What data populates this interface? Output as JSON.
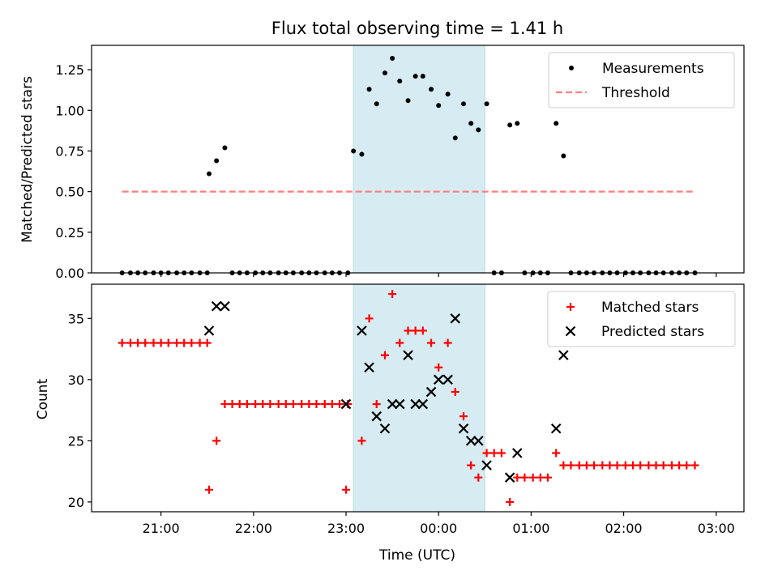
{
  "chart_data": [
    {
      "type": "scatter",
      "title": "Flux total observing time = 1.41 h",
      "xlabel": "",
      "ylabel": "Matched/Predicted stars",
      "ylim": [
        0,
        1.4
      ],
      "yticks": [
        0,
        0.25,
        0.5,
        0.75,
        1.0,
        1.25
      ],
      "ytick_labels": [
        "0.00",
        "0.25",
        "0.50",
        "0.75",
        "1.00",
        "1.25"
      ],
      "x_unit": "hours since 20:00 UTC",
      "xlim": [
        0.25,
        7.3
      ],
      "highlight_span": [
        3.08,
        4.5
      ],
      "legend_position": "top-right",
      "series": [
        {
          "name": "Measurements",
          "marker": "dot",
          "color": "#000000",
          "points": [
            [
              0.58,
              0
            ],
            [
              0.67,
              0
            ],
            [
              0.75,
              0
            ],
            [
              0.83,
              0
            ],
            [
              0.92,
              0
            ],
            [
              1.0,
              0
            ],
            [
              1.08,
              0
            ],
            [
              1.17,
              0
            ],
            [
              1.25,
              0
            ],
            [
              1.33,
              0
            ],
            [
              1.42,
              0
            ],
            [
              1.5,
              0
            ],
            [
              1.52,
              0.61
            ],
            [
              1.6,
              0.69
            ],
            [
              1.69,
              0.77
            ],
            [
              1.77,
              0
            ],
            [
              1.85,
              0
            ],
            [
              1.93,
              0
            ],
            [
              2.02,
              0
            ],
            [
              2.1,
              0
            ],
            [
              2.18,
              0
            ],
            [
              2.27,
              0
            ],
            [
              2.35,
              0
            ],
            [
              2.43,
              0
            ],
            [
              2.52,
              0
            ],
            [
              2.6,
              0
            ],
            [
              2.68,
              0
            ],
            [
              2.77,
              0
            ],
            [
              2.85,
              0
            ],
            [
              2.93,
              0
            ],
            [
              3.02,
              0
            ],
            [
              3.08,
              0.75
            ],
            [
              3.17,
              0.73
            ],
            [
              3.25,
              1.13
            ],
            [
              3.33,
              1.04
            ],
            [
              3.42,
              1.23
            ],
            [
              3.5,
              1.32
            ],
            [
              3.58,
              1.18
            ],
            [
              3.67,
              1.06
            ],
            [
              3.75,
              1.21
            ],
            [
              3.83,
              1.21
            ],
            [
              3.92,
              1.13
            ],
            [
              4.0,
              1.03
            ],
            [
              4.1,
              1.1
            ],
            [
              4.18,
              0.83
            ],
            [
              4.27,
              1.04
            ],
            [
              4.35,
              0.92
            ],
            [
              4.43,
              0.88
            ],
            [
              4.52,
              1.04
            ],
            [
              4.6,
              0
            ],
            [
              4.68,
              0
            ],
            [
              4.77,
              0.91
            ],
            [
              4.85,
              0.92
            ],
            [
              4.93,
              0
            ],
            [
              5.02,
              0
            ],
            [
              5.1,
              0
            ],
            [
              5.18,
              0
            ],
            [
              5.27,
              0.92
            ],
            [
              5.35,
              0.72
            ],
            [
              5.43,
              0
            ],
            [
              5.52,
              0
            ],
            [
              5.6,
              0
            ],
            [
              5.68,
              0
            ],
            [
              5.77,
              0
            ],
            [
              5.85,
              0
            ],
            [
              5.93,
              0
            ],
            [
              6.02,
              0
            ],
            [
              6.1,
              0
            ],
            [
              6.18,
              0
            ],
            [
              6.27,
              0
            ],
            [
              6.35,
              0
            ],
            [
              6.43,
              0
            ],
            [
              6.52,
              0
            ],
            [
              6.6,
              0
            ],
            [
              6.68,
              0
            ],
            [
              6.77,
              0
            ]
          ]
        },
        {
          "name": "Threshold",
          "marker": "dashed-line",
          "color": "#ff7f7f",
          "points": [
            [
              0.58,
              0.5
            ],
            [
              6.77,
              0.5
            ]
          ]
        }
      ]
    },
    {
      "type": "scatter",
      "title": "",
      "xlabel": "Time (UTC)",
      "ylabel": "Count",
      "ylim": [
        19.2,
        37.8
      ],
      "yticks": [
        20,
        25,
        30,
        35
      ],
      "ytick_labels": [
        "20",
        "25",
        "30",
        "35"
      ],
      "x_unit": "hours since 20:00 UTC",
      "xlim": [
        0.25,
        7.3
      ],
      "xticks": [
        1,
        2,
        3,
        4,
        5,
        6,
        7
      ],
      "xtick_labels": [
        "21:00",
        "22:00",
        "23:00",
        "00:00",
        "01:00",
        "02:00",
        "03:00"
      ],
      "highlight_span": [
        3.08,
        4.5
      ],
      "legend_position": "top-right",
      "series": [
        {
          "name": "Matched stars",
          "marker": "plus",
          "color": "#ff0000",
          "points": [
            [
              0.58,
              33
            ],
            [
              0.67,
              33
            ],
            [
              0.75,
              33
            ],
            [
              0.83,
              33
            ],
            [
              0.92,
              33
            ],
            [
              1.0,
              33
            ],
            [
              1.08,
              33
            ],
            [
              1.17,
              33
            ],
            [
              1.25,
              33
            ],
            [
              1.33,
              33
            ],
            [
              1.42,
              33
            ],
            [
              1.5,
              33
            ],
            [
              1.52,
              21
            ],
            [
              1.6,
              25
            ],
            [
              1.69,
              28
            ],
            [
              1.77,
              28
            ],
            [
              1.85,
              28
            ],
            [
              1.93,
              28
            ],
            [
              2.02,
              28
            ],
            [
              2.1,
              28
            ],
            [
              2.18,
              28
            ],
            [
              2.27,
              28
            ],
            [
              2.35,
              28
            ],
            [
              2.43,
              28
            ],
            [
              2.52,
              28
            ],
            [
              2.6,
              28
            ],
            [
              2.68,
              28
            ],
            [
              2.77,
              28
            ],
            [
              2.85,
              28
            ],
            [
              2.93,
              28
            ],
            [
              3.02,
              28
            ],
            [
              3.0,
              21
            ],
            [
              3.17,
              25
            ],
            [
              3.25,
              35
            ],
            [
              3.33,
              28
            ],
            [
              3.42,
              32
            ],
            [
              3.5,
              37
            ],
            [
              3.58,
              33
            ],
            [
              3.67,
              34
            ],
            [
              3.75,
              34
            ],
            [
              3.83,
              34
            ],
            [
              3.92,
              33
            ],
            [
              4.0,
              31
            ],
            [
              4.1,
              33
            ],
            [
              4.18,
              29
            ],
            [
              4.27,
              27
            ],
            [
              4.35,
              23
            ],
            [
              4.43,
              22
            ],
            [
              4.52,
              24
            ],
            [
              4.6,
              24
            ],
            [
              4.68,
              24
            ],
            [
              4.77,
              20
            ],
            [
              4.85,
              22
            ],
            [
              4.93,
              22
            ],
            [
              5.02,
              22
            ],
            [
              5.1,
              22
            ],
            [
              5.18,
              22
            ],
            [
              5.27,
              24
            ],
            [
              5.35,
              23
            ],
            [
              5.43,
              23
            ],
            [
              5.52,
              23
            ],
            [
              5.6,
              23
            ],
            [
              5.68,
              23
            ],
            [
              5.77,
              23
            ],
            [
              5.85,
              23
            ],
            [
              5.93,
              23
            ],
            [
              6.02,
              23
            ],
            [
              6.1,
              23
            ],
            [
              6.18,
              23
            ],
            [
              6.27,
              23
            ],
            [
              6.35,
              23
            ],
            [
              6.43,
              23
            ],
            [
              6.52,
              23
            ],
            [
              6.6,
              23
            ],
            [
              6.68,
              23
            ],
            [
              6.77,
              23
            ]
          ]
        },
        {
          "name": "Predicted stars",
          "marker": "x",
          "color": "#000000",
          "points": [
            [
              1.52,
              34
            ],
            [
              1.6,
              36
            ],
            [
              1.69,
              36
            ],
            [
              3.0,
              28
            ],
            [
              3.17,
              34
            ],
            [
              3.25,
              31
            ],
            [
              3.33,
              27
            ],
            [
              3.42,
              26
            ],
            [
              3.5,
              28
            ],
            [
              3.58,
              28
            ],
            [
              3.67,
              32
            ],
            [
              3.75,
              28
            ],
            [
              3.83,
              28
            ],
            [
              3.92,
              29
            ],
            [
              4.0,
              30
            ],
            [
              4.1,
              30
            ],
            [
              4.18,
              35
            ],
            [
              4.27,
              26
            ],
            [
              4.35,
              25
            ],
            [
              4.43,
              25
            ],
            [
              4.52,
              23
            ],
            [
              4.77,
              22
            ],
            [
              4.85,
              24
            ],
            [
              5.27,
              26
            ],
            [
              5.35,
              32
            ]
          ]
        }
      ]
    }
  ]
}
